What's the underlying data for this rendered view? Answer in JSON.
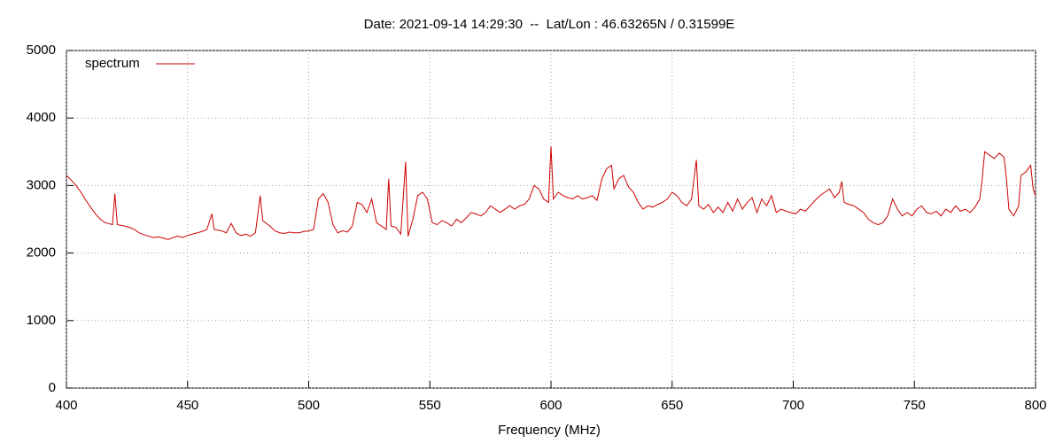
{
  "chart_data": {
    "type": "line",
    "title": "Date: 2021-09-14 14:29:30  --  Lat/Lon : 46.63265N / 0.31599E",
    "x_label": "Frequency (MHz)",
    "x": [
      400,
      402,
      404,
      406,
      408,
      410,
      412,
      414,
      416,
      418,
      419,
      420,
      421,
      424,
      426,
      428,
      430,
      432,
      434,
      436,
      438,
      440,
      442,
      444,
      446,
      448,
      450,
      452,
      454,
      456,
      458,
      460,
      461,
      464,
      466,
      468,
      470,
      472,
      474,
      476,
      478,
      480,
      481,
      484,
      486,
      488,
      490,
      492,
      494,
      496,
      498,
      500,
      502,
      504,
      506,
      508,
      510,
      512,
      514,
      516,
      518,
      520,
      522,
      524,
      526,
      528,
      530,
      532,
      533,
      534,
      536,
      538,
      540,
      541,
      543,
      545,
      547,
      549,
      551,
      553,
      555,
      557,
      559,
      561,
      563,
      565,
      567,
      569,
      571,
      573,
      575,
      577,
      579,
      581,
      583,
      585,
      587,
      589,
      591,
      593,
      595,
      597,
      599,
      600,
      601,
      603,
      605,
      607,
      609,
      611,
      613,
      615,
      617,
      619,
      621,
      623,
      625,
      626,
      628,
      630,
      632,
      634,
      636,
      638,
      640,
      642,
      644,
      646,
      648,
      650,
      652,
      654,
      656,
      658,
      660,
      661,
      663,
      665,
      667,
      669,
      671,
      673,
      675,
      677,
      679,
      681,
      683,
      685,
      687,
      689,
      691,
      693,
      695,
      697,
      699,
      701,
      703,
      705,
      707,
      709,
      711,
      713,
      715,
      717,
      719,
      720,
      721,
      723,
      725,
      727,
      729,
      731,
      733,
      735,
      737,
      739,
      741,
      743,
      745,
      747,
      749,
      751,
      753,
      755,
      757,
      759,
      761,
      763,
      765,
      767,
      769,
      771,
      773,
      775,
      777,
      778,
      779,
      781,
      783,
      785,
      787,
      788,
      789,
      791,
      793,
      794,
      796,
      798,
      799,
      800
    ],
    "series": [
      {
        "name": "spectrum",
        "color": "#cc0000",
        "values": [
          3150,
          3080,
          3000,
          2900,
          2780,
          2680,
          2580,
          2500,
          2450,
          2430,
          2420,
          2880,
          2420,
          2400,
          2380,
          2350,
          2300,
          2270,
          2250,
          2230,
          2240,
          2220,
          2200,
          2230,
          2250,
          2230,
          2260,
          2280,
          2300,
          2320,
          2350,
          2580,
          2350,
          2330,
          2300,
          2440,
          2300,
          2260,
          2280,
          2250,
          2300,
          2850,
          2480,
          2400,
          2330,
          2300,
          2290,
          2310,
          2300,
          2300,
          2320,
          2330,
          2350,
          2800,
          2880,
          2750,
          2420,
          2300,
          2330,
          2310,
          2400,
          2750,
          2720,
          2600,
          2800,
          2450,
          2400,
          2350,
          3100,
          2400,
          2380,
          2280,
          3350,
          2250,
          2500,
          2850,
          2900,
          2800,
          2450,
          2420,
          2480,
          2450,
          2400,
          2500,
          2450,
          2520,
          2600,
          2580,
          2550,
          2600,
          2700,
          2650,
          2600,
          2650,
          2700,
          2650,
          2700,
          2720,
          2800,
          3000,
          2950,
          2800,
          2750,
          3580,
          2800,
          2900,
          2850,
          2820,
          2800,
          2850,
          2800,
          2820,
          2850,
          2780,
          3100,
          3250,
          3300,
          2950,
          3100,
          3150,
          2980,
          2900,
          2750,
          2650,
          2700,
          2680,
          2720,
          2750,
          2800,
          2900,
          2850,
          2750,
          2700,
          2800,
          3380,
          2700,
          2650,
          2720,
          2600,
          2680,
          2600,
          2750,
          2620,
          2800,
          2650,
          2750,
          2820,
          2600,
          2800,
          2700,
          2850,
          2600,
          2650,
          2620,
          2600,
          2580,
          2650,
          2620,
          2700,
          2780,
          2850,
          2900,
          2950,
          2820,
          2900,
          3060,
          2750,
          2720,
          2700,
          2650,
          2600,
          2500,
          2450,
          2420,
          2450,
          2550,
          2800,
          2650,
          2550,
          2600,
          2550,
          2650,
          2700,
          2600,
          2580,
          2620,
          2550,
          2650,
          2600,
          2700,
          2620,
          2650,
          2600,
          2680,
          2800,
          3100,
          3500,
          3450,
          3400,
          3480,
          3420,
          3100,
          2650,
          2550,
          2700,
          3150,
          3200,
          3300,
          2950,
          2850
        ]
      }
    ],
    "xlim": [
      400,
      800
    ],
    "xticks": [
      400,
      450,
      500,
      550,
      600,
      650,
      700,
      750,
      800
    ],
    "ylim": [
      0,
      5000
    ],
    "yticks": [
      0,
      1000,
      2000,
      3000,
      4000,
      5000
    ],
    "grid": true,
    "legend": "top-left"
  }
}
